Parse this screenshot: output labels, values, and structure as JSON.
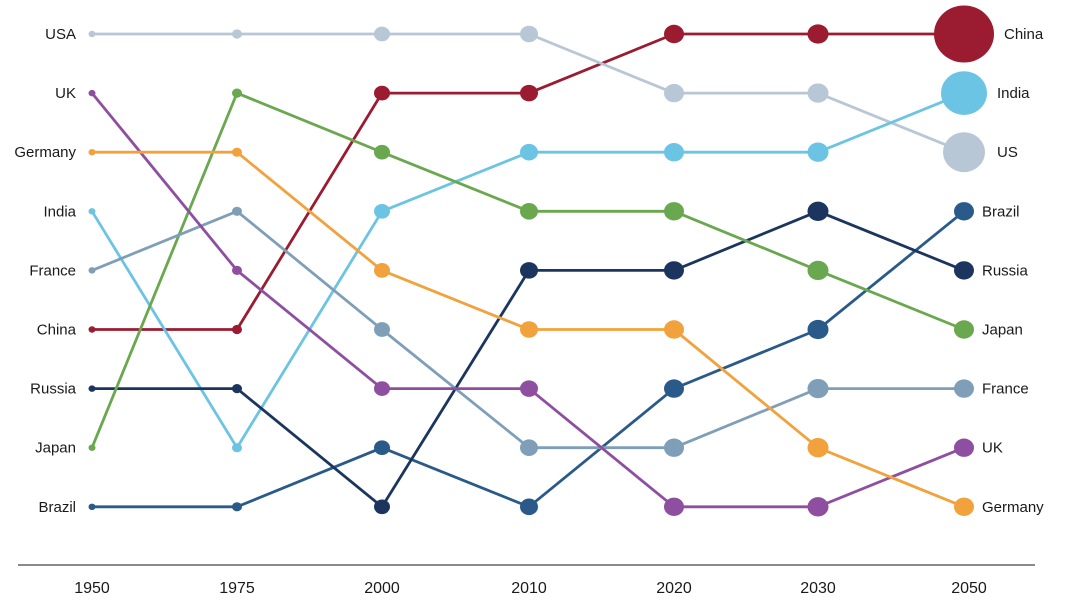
{
  "chart_data": {
    "type": "line",
    "title": "",
    "xlabel": "",
    "ylabel": "",
    "x": [
      "1950",
      "1975",
      "2000",
      "2010",
      "2020",
      "2030",
      "2050"
    ],
    "rank_range": [
      1,
      9
    ],
    "series": [
      {
        "name": "China",
        "color": "#9b1b30",
        "end_label": "China",
        "start_label": "China",
        "ranks": [
          6,
          6,
          2,
          2,
          1,
          1,
          1
        ]
      },
      {
        "name": "USA",
        "color": "#b8c7d6",
        "end_label": "US",
        "start_label": "USA",
        "ranks": [
          1,
          1,
          1,
          1,
          2,
          2,
          3
        ]
      },
      {
        "name": "India",
        "color": "#6cc4e4",
        "end_label": "India",
        "start_label": "India",
        "ranks": [
          4,
          8,
          4,
          3,
          3,
          3,
          2
        ]
      },
      {
        "name": "Brazil",
        "color": "#2a5a8a",
        "end_label": "Brazil",
        "start_label": "Brazil",
        "ranks": [
          9,
          9,
          8,
          9,
          7,
          6,
          4
        ]
      },
      {
        "name": "Russia",
        "color": "#1c355e",
        "end_label": "Russia",
        "start_label": "Russia",
        "ranks": [
          7,
          7,
          9,
          5,
          5,
          4,
          5
        ]
      },
      {
        "name": "Japan",
        "color": "#6aa84f",
        "end_label": "Japan",
        "start_label": "Japan",
        "ranks": [
          8,
          2,
          3,
          4,
          4,
          5,
          6
        ]
      },
      {
        "name": "France",
        "color": "#7f9fb8",
        "end_label": "France",
        "start_label": "France",
        "ranks": [
          5,
          4,
          6,
          8,
          8,
          7,
          7
        ]
      },
      {
        "name": "UK",
        "color": "#8e4fa0",
        "end_label": "UK",
        "start_label": "UK",
        "ranks": [
          2,
          5,
          7,
          7,
          9,
          9,
          8
        ]
      },
      {
        "name": "Germany",
        "color": "#f2a23c",
        "end_label": "Germany",
        "start_label": "Germany",
        "ranks": [
          3,
          3,
          5,
          6,
          6,
          8,
          9
        ]
      }
    ]
  }
}
